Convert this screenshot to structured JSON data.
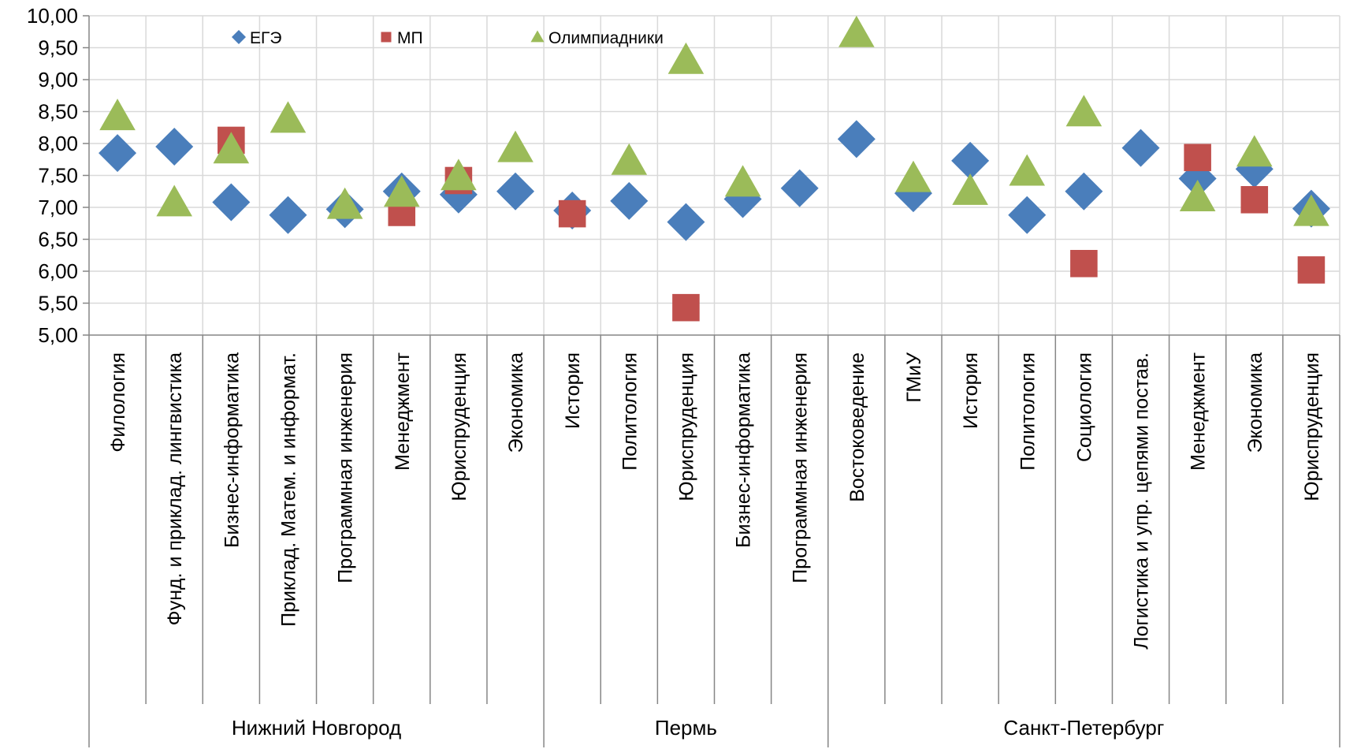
{
  "chart_data": {
    "type": "scatter",
    "title": "",
    "xlabel": "",
    "ylabel": "",
    "ylim": [
      5.0,
      10.0
    ],
    "ytick_step": 0.5,
    "ytick_labels": [
      "5,00",
      "5,50",
      "6,00",
      "6,50",
      "7,00",
      "7,50",
      "8,00",
      "8,50",
      "9,00",
      "9,50",
      "10,00"
    ],
    "grid": true,
    "legend_position": "top",
    "categories": [
      "Филология",
      "Фунд. и приклад. лингвистика",
      "Бизнес-информатика",
      "Приклад. Матем. и информат.",
      "Программная инженерия",
      "Менеджмент",
      "Юриспруденция",
      "Экономика",
      "История",
      "Политология",
      "Юриспруденция",
      "Бизнес-информатика",
      "Программная инженерия",
      "Востоковедение",
      "ГМиУ",
      "История",
      "Политология",
      "Социология",
      "Логистика и упр. цепями постав.",
      "Менеджмент",
      "Экономика",
      "Юриспруденция"
    ],
    "groups": [
      {
        "name": "Нижний Новгород",
        "start": 0,
        "end": 7
      },
      {
        "name": "Пермь",
        "start": 8,
        "end": 12
      },
      {
        "name": "Санкт-Петербург",
        "start": 13,
        "end": 21
      }
    ],
    "series": [
      {
        "name": "ЕГЭ",
        "marker": "diamond",
        "color": "#4a7ebb",
        "values": [
          7.85,
          7.95,
          7.08,
          6.88,
          6.97,
          7.25,
          7.2,
          7.25,
          6.95,
          7.1,
          6.77,
          7.13,
          7.3,
          8.07,
          7.22,
          7.73,
          6.88,
          7.25,
          7.93,
          7.45,
          7.6,
          6.98
        ]
      },
      {
        "name": "МП",
        "marker": "square",
        "color": "#c0504d",
        "values": [
          null,
          null,
          8.05,
          null,
          null,
          6.92,
          7.42,
          null,
          6.9,
          null,
          5.43,
          null,
          null,
          null,
          null,
          null,
          null,
          6.12,
          null,
          7.78,
          7.12,
          6.02
        ]
      },
      {
        "name": "Олимпиадники",
        "marker": "triangle",
        "color": "#9bbb59",
        "values": [
          8.42,
          7.07,
          7.9,
          8.38,
          7.03,
          7.22,
          7.48,
          7.92,
          null,
          7.72,
          9.3,
          7.38,
          null,
          9.72,
          7.45,
          7.25,
          7.55,
          8.48,
          null,
          7.15,
          7.85,
          6.92
        ]
      }
    ]
  }
}
